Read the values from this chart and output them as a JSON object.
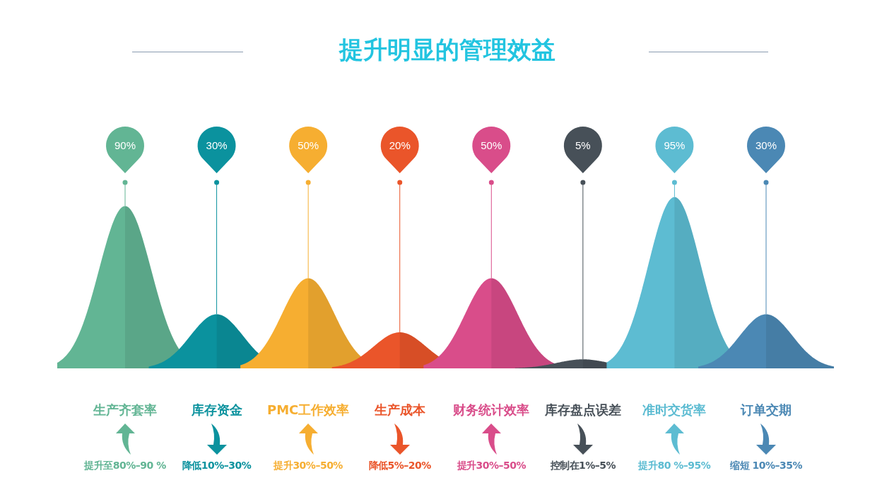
{
  "chart_data": {
    "type": "other",
    "title": "提升明显的管理效益",
    "categories": [
      "生产齐套率",
      "库存资金",
      "PMC工作效率",
      "生产成本",
      "财务统计效率",
      "库存盘点误差",
      "准时交货率",
      "订单交期"
    ],
    "values": [
      90,
      30,
      50,
      20,
      50,
      5,
      95,
      30
    ],
    "value_labels": [
      "90%",
      "30%",
      "50%",
      "20%",
      "50%",
      "5%",
      "95%",
      "30%"
    ],
    "colors": [
      "#62b594",
      "#0b929e",
      "#f6ae31",
      "#ea552a",
      "#d94d8a",
      "#475058",
      "#5dbcd2",
      "#4b88b4"
    ],
    "annotations": [
      "提升至80%–90 %",
      "降低10%–30%",
      "提升30%–50%",
      "降低5%–20%",
      "提升30%–50%",
      "控制在1%–5%",
      "提升80 %–95%",
      "缩短 10%–35%"
    ]
  }
}
